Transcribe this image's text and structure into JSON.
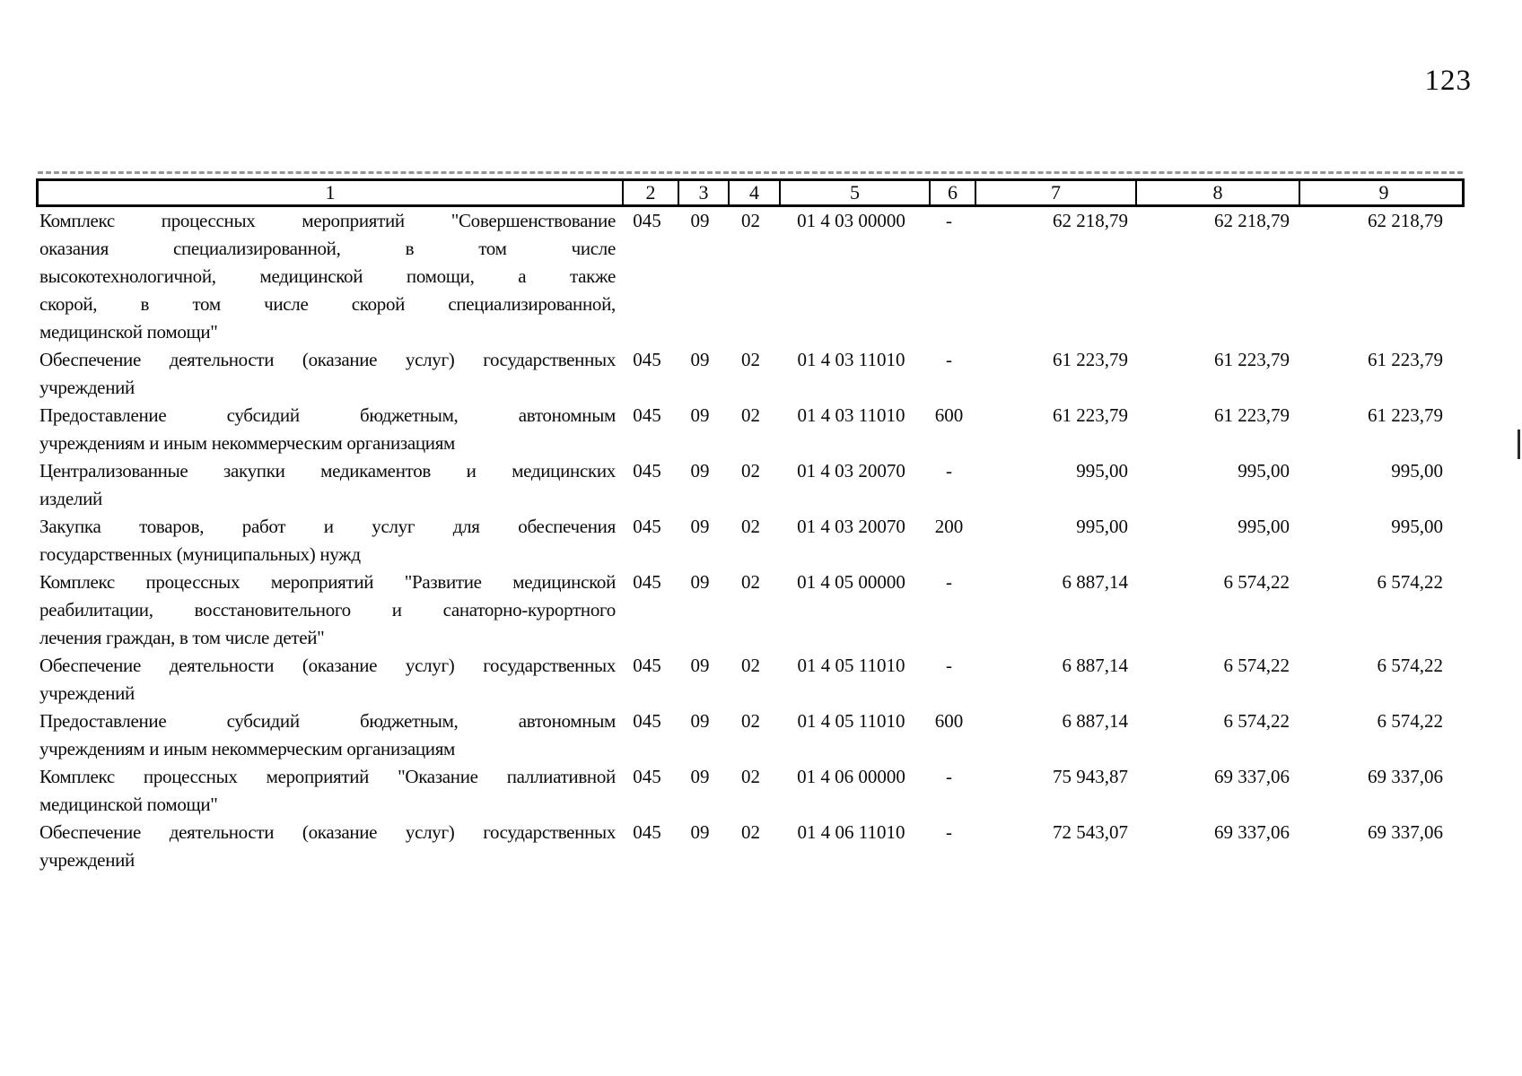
{
  "page_number": "123",
  "table": {
    "header_cells": [
      "1",
      "2",
      "3",
      "4",
      "5",
      "6",
      "7",
      "8",
      "9"
    ],
    "rows": [
      {
        "name_lines": [
          "Комплекс процессных мероприятий \"Совершенствование",
          "оказания специализированной, в том числе",
          "высокотехнологичной, медицинской помощи, а также",
          "скорой, в том числе скорой специализированной,",
          "медицинской помощи\""
        ],
        "col2": "045",
        "col3": "09",
        "col4": "02",
        "col5": "01 4 03 00000",
        "col6": "-",
        "col7": "62 218,79",
        "col8": "62 218,79",
        "col9": "62 218,79"
      },
      {
        "name_lines": [
          "Обеспечение деятельности (оказание услуг) государственных",
          "учреждений"
        ],
        "col2": "045",
        "col3": "09",
        "col4": "02",
        "col5": "01 4 03 11010",
        "col6": "-",
        "col7": "61 223,79",
        "col8": "61 223,79",
        "col9": "61 223,79"
      },
      {
        "name_lines": [
          "Предоставление субсидий бюджетным, автономным",
          "учреждениям и иным некоммерческим организациям"
        ],
        "col2": "045",
        "col3": "09",
        "col4": "02",
        "col5": "01 4 03 11010",
        "col6": "600",
        "col7": "61 223,79",
        "col8": "61 223,79",
        "col9": "61 223,79"
      },
      {
        "name_lines": [
          "Централизованные закупки медикаментов и медицинских",
          "изделий"
        ],
        "col2": "045",
        "col3": "09",
        "col4": "02",
        "col5": "01 4 03 20070",
        "col6": "-",
        "col7": "995,00",
        "col8": "995,00",
        "col9": "995,00"
      },
      {
        "name_lines": [
          "Закупка товаров, работ и услуг для обеспечения",
          "государственных (муниципальных) нужд"
        ],
        "col2": "045",
        "col3": "09",
        "col4": "02",
        "col5": "01 4 03 20070",
        "col6": "200",
        "col7": "995,00",
        "col8": "995,00",
        "col9": "995,00"
      },
      {
        "name_lines": [
          "Комплекс процессных мероприятий \"Развитие медицинской",
          "реабилитации, восстановительного и санаторно-курортного",
          "лечения граждан, в том числе детей\""
        ],
        "col2": "045",
        "col3": "09",
        "col4": "02",
        "col5": "01 4 05 00000",
        "col6": "-",
        "col7": "6 887,14",
        "col8": "6 574,22",
        "col9": "6 574,22"
      },
      {
        "name_lines": [
          "Обеспечение деятельности (оказание услуг) государственных",
          "учреждений"
        ],
        "col2": "045",
        "col3": "09",
        "col4": "02",
        "col5": "01 4 05 11010",
        "col6": "-",
        "col7": "6 887,14",
        "col8": "6 574,22",
        "col9": "6 574,22"
      },
      {
        "name_lines": [
          "Предоставление субсидий бюджетным, автономным",
          "учреждениям и иным некоммерческим организациям"
        ],
        "col2": "045",
        "col3": "09",
        "col4": "02",
        "col5": "01 4 05 11010",
        "col6": "600",
        "col7": "6 887,14",
        "col8": "6 574,22",
        "col9": "6 574,22"
      },
      {
        "name_lines": [
          "Комплекс процессных мероприятий \"Оказание паллиативной",
          "медицинской помощи\""
        ],
        "col2": "045",
        "col3": "09",
        "col4": "02",
        "col5": "01 4 06 00000",
        "col6": "-",
        "col7": "75 943,87",
        "col8": "69 337,06",
        "col9": "69 337,06"
      },
      {
        "name_lines": [
          "Обеспечение деятельности (оказание услуг) государственных",
          "учреждений"
        ],
        "col2": "045",
        "col3": "09",
        "col4": "02",
        "col5": "01 4 06 11010",
        "col6": "-",
        "col7": "72 543,07",
        "col8": "69 337,06",
        "col9": "69 337,06"
      }
    ]
  }
}
